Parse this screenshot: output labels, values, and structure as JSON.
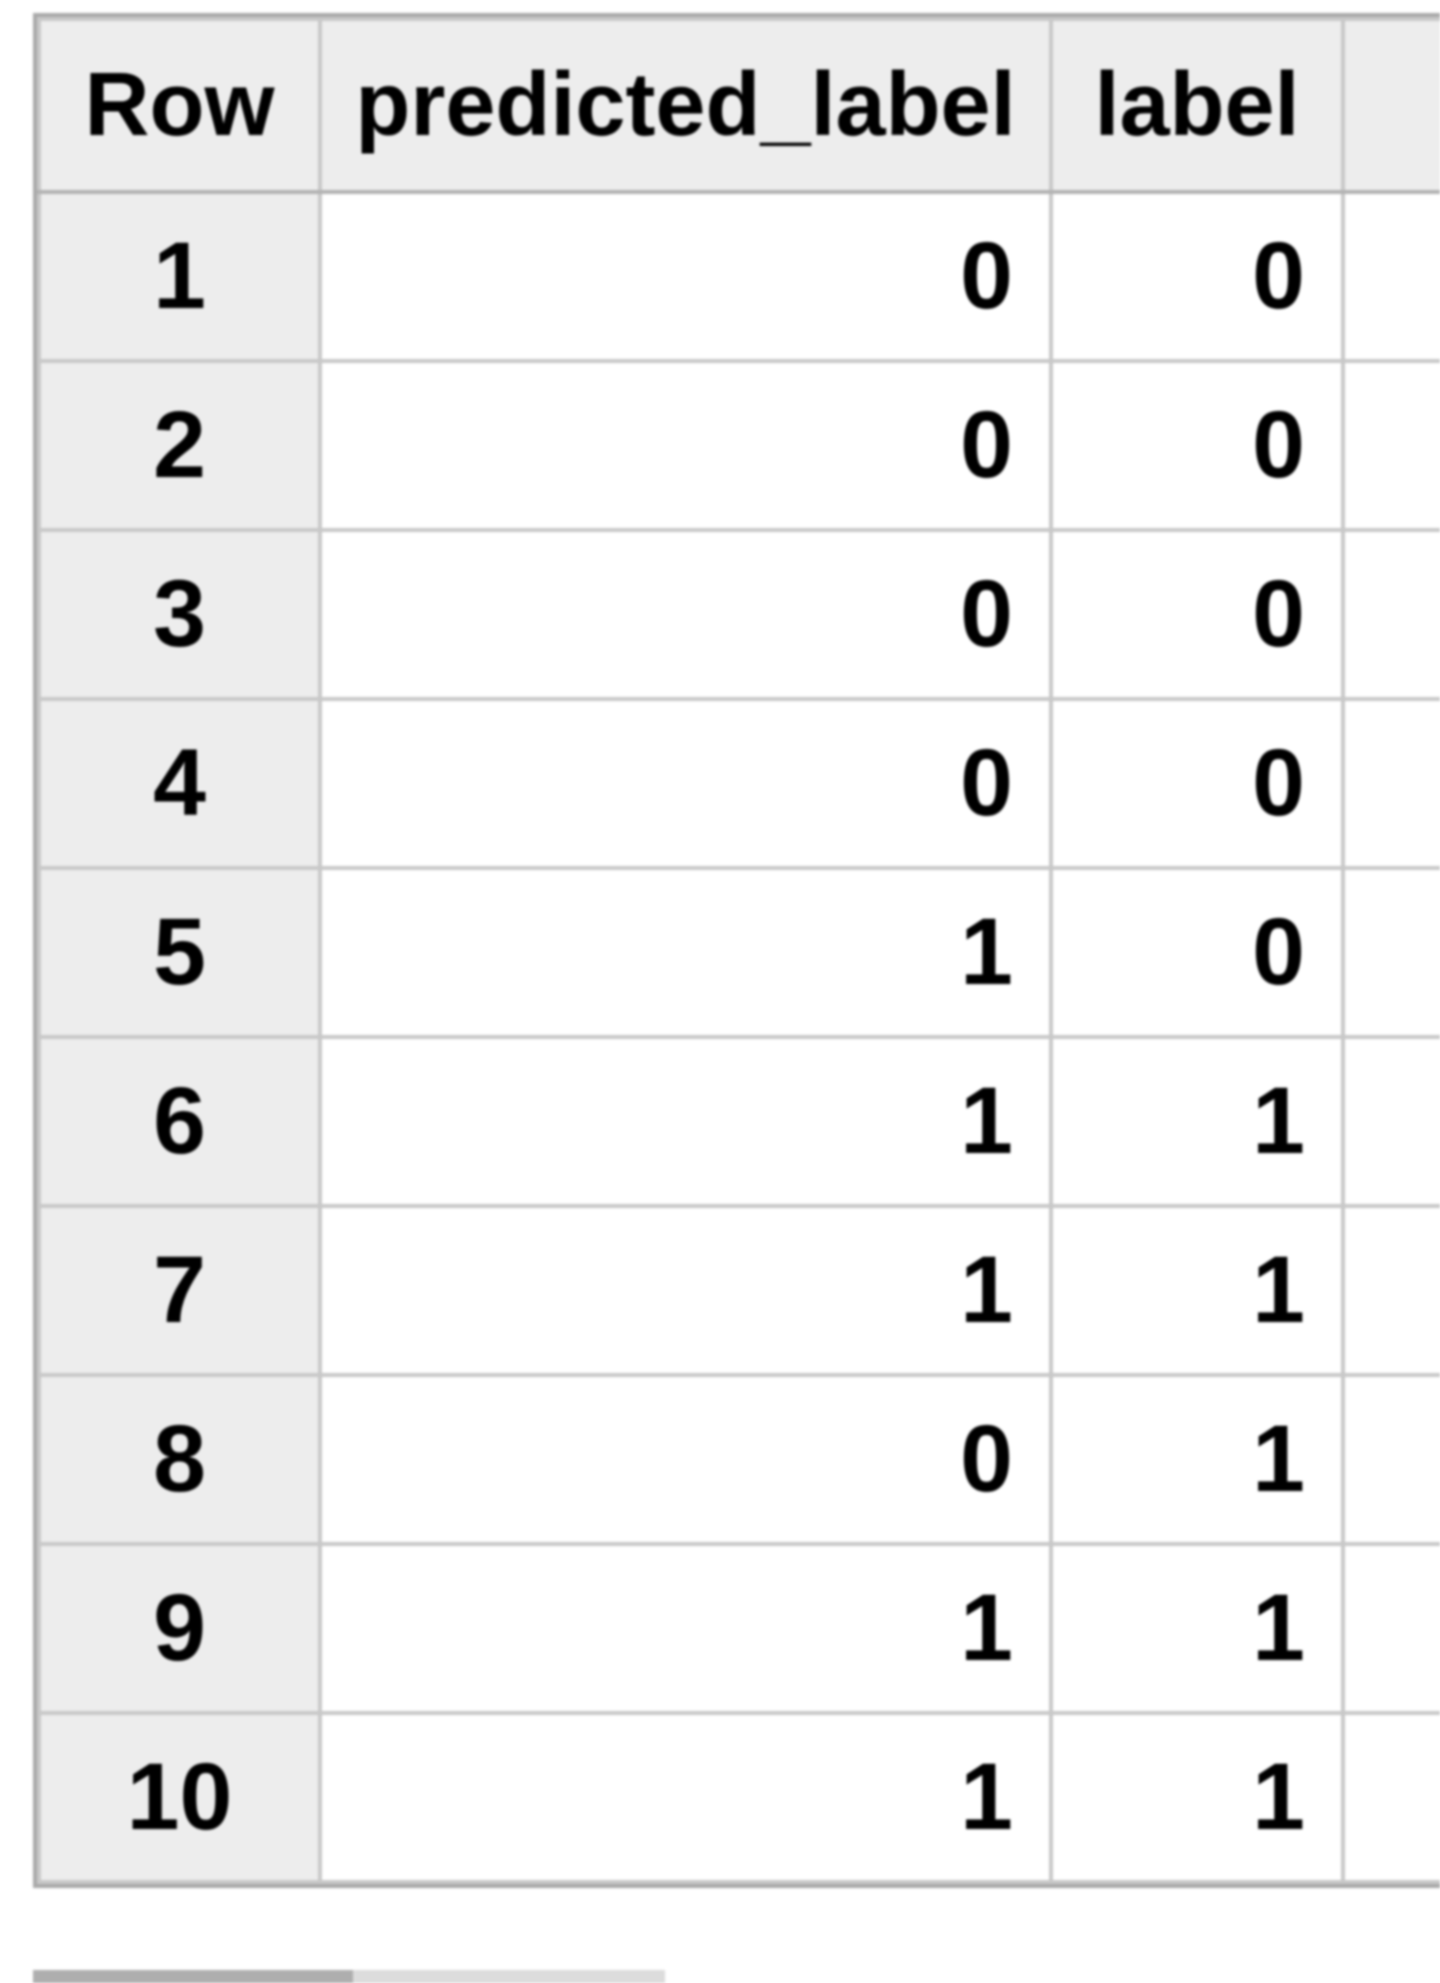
{
  "table": {
    "columns": [
      {
        "id": "row",
        "label": "Row"
      },
      {
        "id": "predicted_label",
        "label": "predicted_label"
      },
      {
        "id": "label",
        "label": "label"
      },
      {
        "id": "extra",
        "label": ""
      }
    ],
    "rows": [
      {
        "row": "1",
        "predicted_label": "0",
        "label": "0"
      },
      {
        "row": "2",
        "predicted_label": "0",
        "label": "0"
      },
      {
        "row": "3",
        "predicted_label": "0",
        "label": "0"
      },
      {
        "row": "4",
        "predicted_label": "0",
        "label": "0"
      },
      {
        "row": "5",
        "predicted_label": "1",
        "label": "0"
      },
      {
        "row": "6",
        "predicted_label": "1",
        "label": "1"
      },
      {
        "row": "7",
        "predicted_label": "1",
        "label": "1"
      },
      {
        "row": "8",
        "predicted_label": "0",
        "label": "1"
      },
      {
        "row": "9",
        "predicted_label": "1",
        "label": "1"
      },
      {
        "row": "10",
        "predicted_label": "1",
        "label": "1"
      }
    ]
  },
  "scrollbar": {
    "orientation": "horizontal",
    "track_color": "#dcdcdc",
    "thumb_color": "#aeaeae"
  },
  "colors": {
    "header_background": "#ededed",
    "row_number_background": "#ededed",
    "grid_line": "#c8c8c8",
    "outer_border": "#a9a9a9",
    "cell_text": "#000000",
    "page_background": "#ffffff"
  }
}
